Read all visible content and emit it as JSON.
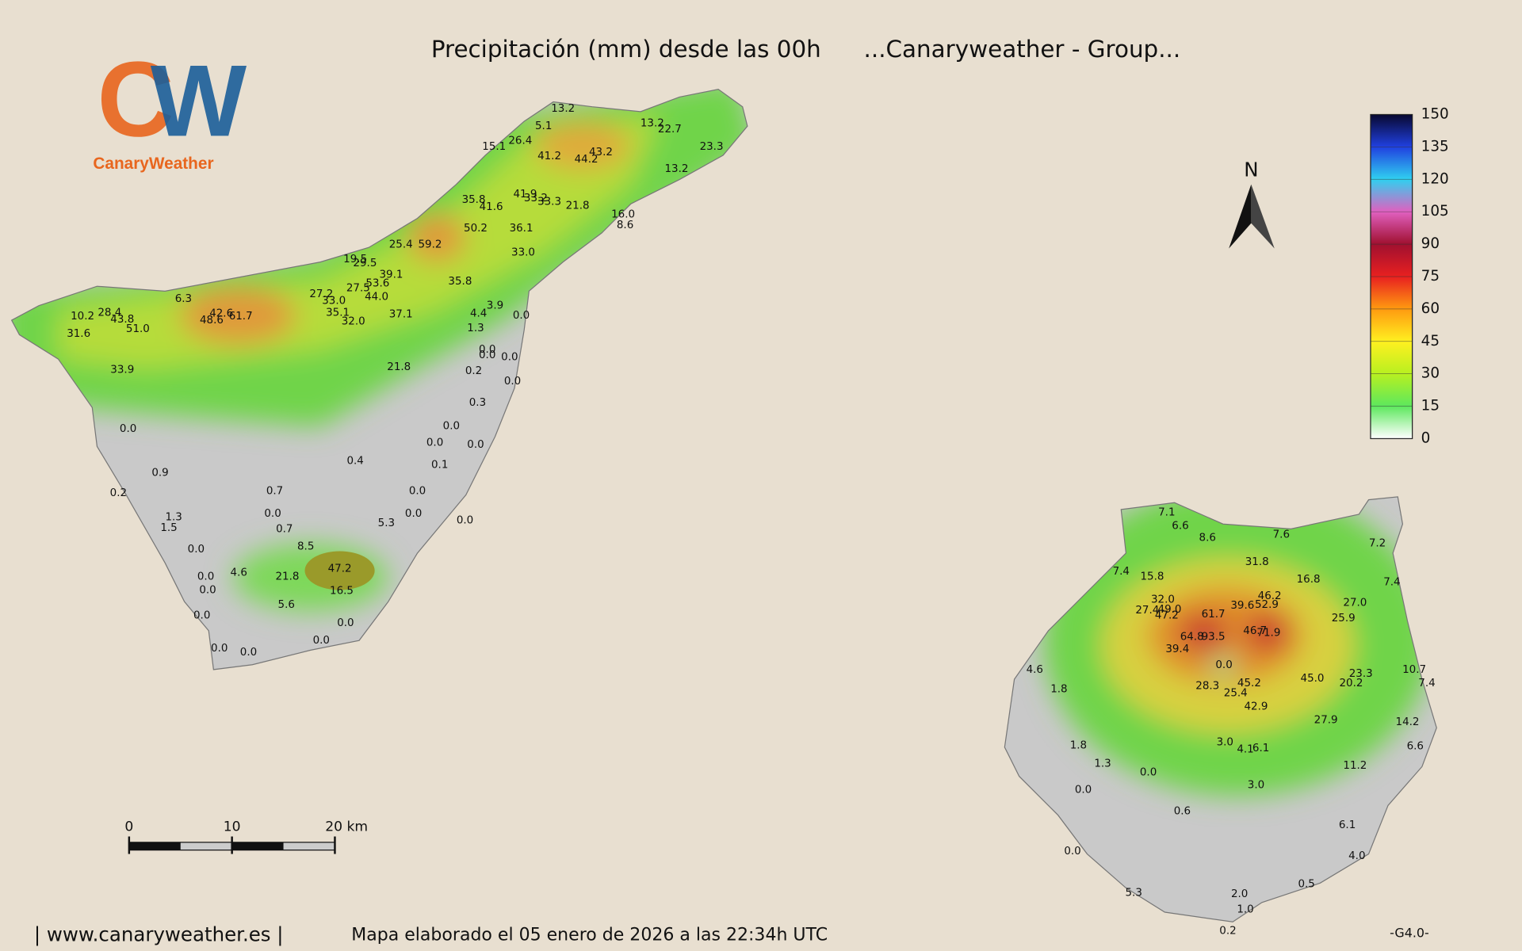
{
  "header": {
    "title": "Precipitación (mm) desde las 00h",
    "group": "...Canaryweather - Group..."
  },
  "logo": {
    "text": "CanaryWeather"
  },
  "legend": {
    "ticks": [
      0,
      15,
      30,
      45,
      60,
      75,
      90,
      105,
      120,
      135,
      150
    ]
  },
  "north": "N",
  "scale_bar": {
    "ticks": [
      "0",
      "10",
      "20 km"
    ]
  },
  "tenerife": {
    "stations": [
      "13.2",
      "5.1",
      "26.4",
      "15.1",
      "13.2",
      "22.7",
      "41.2",
      "43.2",
      "44.2",
      "23.3",
      "13.2",
      "41.9",
      "33.2",
      "33.3",
      "21.8",
      "35.8",
      "41.6",
      "16.0",
      "8.6",
      "50.2",
      "36.1",
      "25.4",
      "59.2",
      "33.0",
      "19.5",
      "29.5",
      "39.1",
      "53.6",
      "35.8",
      "27.2",
      "27.5",
      "33.0",
      "44.0",
      "6.3",
      "3.9",
      "4.4",
      "0.0",
      "10.2",
      "28.4",
      "43.8",
      "42.6",
      "48.6",
      "61.7",
      "35.1",
      "32.0",
      "37.1",
      "51.0",
      "31.6",
      "1.3",
      "0.0",
      "0.0",
      "0.0",
      "33.9",
      "21.8",
      "0.2",
      "0.0",
      "0.3",
      "0.0",
      "0.0",
      "0.0",
      "0.0",
      "0.4",
      "0.1",
      "0.9",
      "0.7",
      "0.0",
      "0.2",
      "0.0",
      "0.0",
      "1.3",
      "5.3",
      "0.0",
      "1.5",
      "0.7",
      "8.5",
      "0.0",
      "47.2",
      "4.6",
      "21.8",
      "0.0",
      "0.0",
      "16.5",
      "5.6",
      "0.0",
      "0.0",
      "0.0",
      "0.0",
      "0.0"
    ]
  },
  "gran_canaria": {
    "stations": [
      "7.1",
      "6.6",
      "8.6",
      "7.6",
      "7.2",
      "31.8",
      "7.4",
      "15.8",
      "16.8",
      "7.4",
      "46.2",
      "32.0",
      "52.9",
      "39.6",
      "27.0",
      "27.4",
      "49.0",
      "47.2",
      "61.7",
      "25.9",
      "46.7",
      "71.9",
      "64.8",
      "93.5",
      "39.4",
      "0.0",
      "4.6",
      "23.3",
      "10.7",
      "45.0",
      "20.2",
      "7.4",
      "45.2",
      "28.3",
      "1.8",
      "25.4",
      "42.9",
      "27.9",
      "14.2",
      "3.0",
      "1.8",
      "4.1",
      "6.1",
      "6.6",
      "1.3",
      "11.2",
      "0.0",
      "3.0",
      "0.0",
      "0.6",
      "6.1",
      "0.0",
      "4.0",
      "0.5",
      "5.3",
      "2.0",
      "1.0",
      "0.2"
    ]
  },
  "footer": {
    "url": "| www.canaryweather.es |",
    "credit": "Mapa elaborado el 05 enero de 2026 a las 22:34h UTC",
    "version": "-G4.0-"
  }
}
